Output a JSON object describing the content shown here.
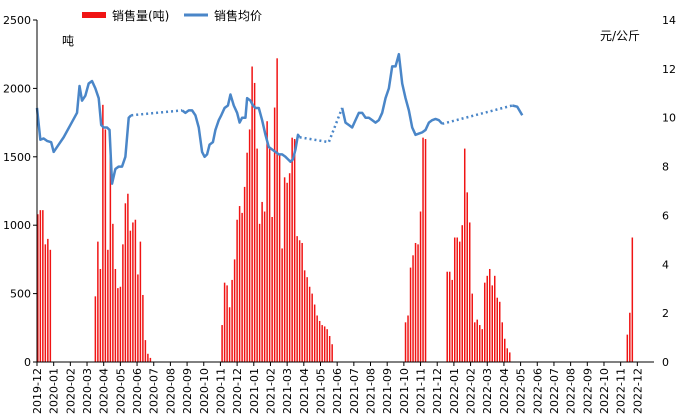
{
  "chart_data": {
    "type": "bar+line",
    "legend": {
      "bar_label": "销售量(吨)",
      "line_label": "销售均价",
      "placement": "top-left"
    },
    "left_unit": "吨",
    "right_unit": "元/公斤",
    "y_left": {
      "min": 0,
      "max": 2500,
      "ticks": [
        "0",
        "500",
        "1000",
        "1500",
        "2000",
        "2500"
      ]
    },
    "y_right": {
      "min": 0,
      "max": 14,
      "ticks": [
        "0",
        "2",
        "4",
        "6",
        "8",
        "10",
        "12",
        "14"
      ]
    },
    "x_labels": [
      "2019-12",
      "2020-01",
      "2020-02",
      "2020-03",
      "2020-04",
      "2020-05",
      "2020-06",
      "2020-07",
      "2020-08",
      "2020-09",
      "2020-10",
      "2020-11",
      "2020-12",
      "2021-01",
      "2021-02",
      "2021-03",
      "2021-04",
      "2021-05",
      "2021-06",
      "2021-07",
      "2021-08",
      "2021-09",
      "2021-10",
      "2021-11",
      "2021-12",
      "2022-01",
      "2022-02",
      "2022-03",
      "2022-04",
      "2022-05",
      "2022-06",
      "2022-07",
      "2022-08",
      "2022-09",
      "2022-10",
      "2022-11",
      "2022-12"
    ],
    "x_range": [
      0,
      37
    ],
    "colors": {
      "bar": "#f01414",
      "line": "#4a86c8"
    },
    "sales_bars": [
      [
        0.05,
        1080
      ],
      [
        0.2,
        1110
      ],
      [
        0.35,
        1110
      ],
      [
        0.5,
        860
      ],
      [
        0.65,
        900
      ],
      [
        0.8,
        820
      ],
      [
        3.5,
        480
      ],
      [
        3.65,
        880
      ],
      [
        3.8,
        680
      ],
      [
        3.95,
        1880
      ],
      [
        4.1,
        1700
      ],
      [
        4.25,
        820
      ],
      [
        4.4,
        1540
      ],
      [
        4.55,
        1010
      ],
      [
        4.7,
        680
      ],
      [
        4.85,
        540
      ],
      [
        5.0,
        550
      ],
      [
        5.15,
        860
      ],
      [
        5.3,
        1160
      ],
      [
        5.45,
        1230
      ],
      [
        5.6,
        960
      ],
      [
        5.75,
        1020
      ],
      [
        5.9,
        1040
      ],
      [
        6.05,
        640
      ],
      [
        6.2,
        880
      ],
      [
        6.35,
        490
      ],
      [
        6.5,
        160
      ],
      [
        6.65,
        60
      ],
      [
        6.8,
        30
      ],
      [
        11.1,
        270
      ],
      [
        11.25,
        580
      ],
      [
        11.4,
        560
      ],
      [
        11.55,
        400
      ],
      [
        11.7,
        600
      ],
      [
        11.85,
        750
      ],
      [
        12.0,
        1040
      ],
      [
        12.15,
        1140
      ],
      [
        12.3,
        1090
      ],
      [
        12.45,
        1280
      ],
      [
        12.6,
        1530
      ],
      [
        12.75,
        1700
      ],
      [
        12.9,
        2160
      ],
      [
        13.05,
        2040
      ],
      [
        13.2,
        1560
      ],
      [
        13.35,
        1010
      ],
      [
        13.5,
        1170
      ],
      [
        13.65,
        1100
      ],
      [
        13.8,
        1760
      ],
      [
        13.95,
        1560
      ],
      [
        14.1,
        1060
      ],
      [
        14.25,
        1860
      ],
      [
        14.4,
        2220
      ],
      [
        14.55,
        1510
      ],
      [
        14.7,
        830
      ],
      [
        14.85,
        1350
      ],
      [
        15.0,
        1310
      ],
      [
        15.15,
        1380
      ],
      [
        15.3,
        1640
      ],
      [
        15.45,
        1630
      ],
      [
        15.6,
        920
      ],
      [
        15.75,
        890
      ],
      [
        15.9,
        870
      ],
      [
        16.05,
        670
      ],
      [
        16.2,
        620
      ],
      [
        16.35,
        550
      ],
      [
        16.5,
        500
      ],
      [
        16.65,
        420
      ],
      [
        16.8,
        340
      ],
      [
        16.95,
        300
      ],
      [
        17.1,
        270
      ],
      [
        17.25,
        260
      ],
      [
        17.4,
        240
      ],
      [
        17.55,
        190
      ],
      [
        17.7,
        130
      ],
      [
        22.1,
        290
      ],
      [
        22.25,
        340
      ],
      [
        22.4,
        690
      ],
      [
        22.55,
        780
      ],
      [
        22.7,
        870
      ],
      [
        22.85,
        860
      ],
      [
        23.0,
        1100
      ],
      [
        23.15,
        1640
      ],
      [
        23.3,
        1630
      ],
      [
        24.6,
        660
      ],
      [
        24.75,
        660
      ],
      [
        24.9,
        600
      ],
      [
        25.05,
        910
      ],
      [
        25.2,
        910
      ],
      [
        25.35,
        880
      ],
      [
        25.5,
        1000
      ],
      [
        25.65,
        1560
      ],
      [
        25.8,
        1240
      ],
      [
        25.95,
        1020
      ],
      [
        26.1,
        500
      ],
      [
        26.25,
        290
      ],
      [
        26.4,
        310
      ],
      [
        26.55,
        270
      ],
      [
        26.7,
        240
      ],
      [
        26.85,
        580
      ],
      [
        27.0,
        630
      ],
      [
        27.15,
        680
      ],
      [
        27.3,
        560
      ],
      [
        27.45,
        630
      ],
      [
        27.6,
        470
      ],
      [
        27.75,
        440
      ],
      [
        27.9,
        290
      ],
      [
        28.05,
        170
      ],
      [
        28.2,
        100
      ],
      [
        28.35,
        70
      ],
      [
        35.4,
        200
      ],
      [
        35.55,
        360
      ],
      [
        35.7,
        910
      ]
    ],
    "price_segments": [
      {
        "style": "solid",
        "points": [
          [
            0,
            10.4
          ],
          [
            0.2,
            9.1
          ],
          [
            0.4,
            9.15
          ],
          [
            0.6,
            9.05
          ],
          [
            0.85,
            9.0
          ],
          [
            1.0,
            8.6
          ],
          [
            1.3,
            8.9
          ],
          [
            1.6,
            9.2
          ],
          [
            2.0,
            9.7
          ],
          [
            2.4,
            10.2
          ],
          [
            2.55,
            11.3
          ],
          [
            2.7,
            10.7
          ],
          [
            2.9,
            10.9
          ],
          [
            3.1,
            11.4
          ],
          [
            3.3,
            11.5
          ],
          [
            3.5,
            11.2
          ],
          [
            3.7,
            10.8
          ],
          [
            3.85,
            9.7
          ],
          [
            4.0,
            9.6
          ],
          [
            4.2,
            9.6
          ],
          [
            4.35,
            9.5
          ],
          [
            4.5,
            7.3
          ],
          [
            4.7,
            7.9
          ],
          [
            4.9,
            8.0
          ],
          [
            5.1,
            8.0
          ],
          [
            5.3,
            8.4
          ],
          [
            5.5,
            10.0
          ],
          [
            5.65,
            10.1
          ]
        ]
      },
      {
        "style": "dotted",
        "points": [
          [
            5.65,
            10.1
          ],
          [
            8.7,
            10.3
          ]
        ]
      },
      {
        "style": "solid",
        "points": [
          [
            8.7,
            10.3
          ],
          [
            8.9,
            10.2
          ],
          [
            9.1,
            10.3
          ],
          [
            9.3,
            10.3
          ],
          [
            9.5,
            10.1
          ],
          [
            9.7,
            9.6
          ],
          [
            9.9,
            8.6
          ],
          [
            10.05,
            8.4
          ],
          [
            10.2,
            8.5
          ],
          [
            10.35,
            8.9
          ],
          [
            10.55,
            9.0
          ],
          [
            10.7,
            9.5
          ],
          [
            10.9,
            9.9
          ],
          [
            11.05,
            10.1
          ],
          [
            11.25,
            10.4
          ],
          [
            11.45,
            10.5
          ],
          [
            11.6,
            10.95
          ],
          [
            11.8,
            10.5
          ],
          [
            12.0,
            10.2
          ],
          [
            12.15,
            9.8
          ],
          [
            12.3,
            10.0
          ],
          [
            12.5,
            10.0
          ],
          [
            12.6,
            10.8
          ],
          [
            12.8,
            10.7
          ],
          [
            12.95,
            10.5
          ],
          [
            13.1,
            10.4
          ],
          [
            13.3,
            10.4
          ],
          [
            13.5,
            9.9
          ],
          [
            13.7,
            9.3
          ],
          [
            13.9,
            8.8
          ],
          [
            14.1,
            8.7
          ],
          [
            14.3,
            8.6
          ],
          [
            14.5,
            8.5
          ],
          [
            14.7,
            8.5
          ],
          [
            14.9,
            8.4
          ],
          [
            15.05,
            8.3
          ],
          [
            15.2,
            8.2
          ],
          [
            15.35,
            8.3
          ],
          [
            15.5,
            8.7
          ],
          [
            15.65,
            9.3
          ],
          [
            15.75,
            9.2
          ]
        ]
      },
      {
        "style": "dotted",
        "points": [
          [
            15.75,
            9.2
          ],
          [
            17.5,
            9.0
          ],
          [
            18.3,
            10.4
          ]
        ]
      },
      {
        "style": "solid",
        "points": [
          [
            18.3,
            10.4
          ],
          [
            18.5,
            9.8
          ],
          [
            18.7,
            9.7
          ],
          [
            18.9,
            9.6
          ],
          [
            19.1,
            9.9
          ],
          [
            19.3,
            10.2
          ],
          [
            19.5,
            10.2
          ],
          [
            19.7,
            10.0
          ],
          [
            19.9,
            10.0
          ],
          [
            20.1,
            9.9
          ],
          [
            20.3,
            9.8
          ],
          [
            20.5,
            9.9
          ],
          [
            20.7,
            10.2
          ],
          [
            20.9,
            10.8
          ],
          [
            21.1,
            11.2
          ],
          [
            21.3,
            12.1
          ],
          [
            21.5,
            12.1
          ],
          [
            21.7,
            12.6
          ],
          [
            21.9,
            11.4
          ],
          [
            22.1,
            10.8
          ],
          [
            22.3,
            10.3
          ],
          [
            22.5,
            9.6
          ],
          [
            22.7,
            9.3
          ],
          [
            22.9,
            9.35
          ],
          [
            23.1,
            9.4
          ],
          [
            23.3,
            9.5
          ],
          [
            23.5,
            9.8
          ],
          [
            23.7,
            9.9
          ],
          [
            23.9,
            9.95
          ],
          [
            24.1,
            9.9
          ],
          [
            24.3,
            9.75
          ]
        ]
      },
      {
        "style": "dotted",
        "points": [
          [
            24.3,
            9.75
          ],
          [
            28.5,
            10.5
          ]
        ]
      },
      {
        "style": "solid",
        "points": [
          [
            28.5,
            10.5
          ],
          [
            28.8,
            10.45
          ],
          [
            29.1,
            10.1
          ]
        ]
      }
    ]
  }
}
